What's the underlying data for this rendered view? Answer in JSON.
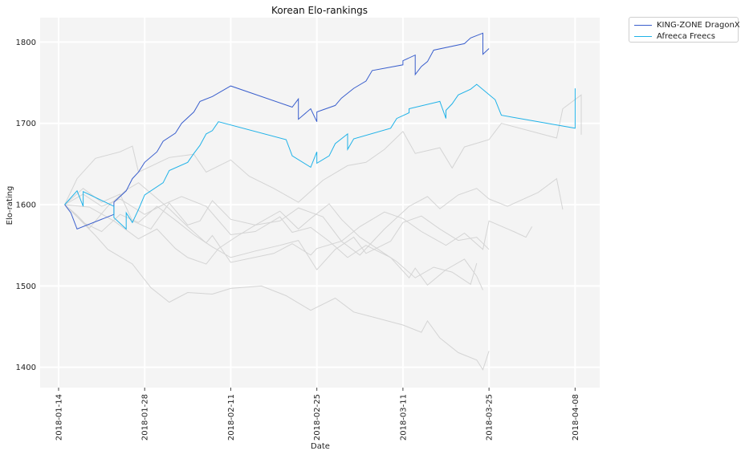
{
  "chart_data": {
    "type": "line",
    "title": "Korean Elo-rankings",
    "xlabel": "Date",
    "ylabel": "Elo-rating",
    "x_ticks": [
      "2018-01-14",
      "2018-01-28",
      "2018-02-11",
      "2018-02-25",
      "2018-03-11",
      "2018-03-25",
      "2018-04-08"
    ],
    "y_ticks": [
      1400,
      1500,
      1600,
      1700,
      1800
    ],
    "xlim": [
      "2018-01-11",
      "2018-04-12"
    ],
    "ylim": [
      1375,
      1830
    ],
    "grid": true,
    "legend_position": "outside-top-right",
    "colors": {
      "background": "#f4f4f4",
      "grid": "#ffffff",
      "other_teams": "#d4d4d4"
    },
    "series": [
      {
        "name": "KING-ZONE DragonX",
        "color": "#3a5fcd",
        "points": [
          [
            "2018-01-15",
            1600
          ],
          [
            "2018-01-16",
            1590
          ],
          [
            "2018-01-17",
            1570
          ],
          [
            "2018-01-23",
            1588
          ],
          [
            "2018-01-23",
            1603
          ],
          [
            "2018-01-25",
            1617
          ],
          [
            "2018-01-26",
            1632
          ],
          [
            "2018-01-27",
            1640
          ],
          [
            "2018-01-28",
            1652
          ],
          [
            "2018-01-30",
            1665
          ],
          [
            "2018-01-31",
            1678
          ],
          [
            "2018-02-02",
            1688
          ],
          [
            "2018-02-03",
            1700
          ],
          [
            "2018-02-05",
            1714
          ],
          [
            "2018-02-06",
            1727
          ],
          [
            "2018-02-08",
            1733
          ],
          [
            "2018-02-11",
            1746
          ],
          [
            "2018-02-21",
            1720
          ],
          [
            "2018-02-22",
            1730
          ],
          [
            "2018-02-22",
            1705
          ],
          [
            "2018-02-24",
            1718
          ],
          [
            "2018-02-25",
            1702
          ],
          [
            "2018-02-25",
            1714
          ],
          [
            "2018-02-28",
            1722
          ],
          [
            "2018-03-01",
            1731
          ],
          [
            "2018-03-03",
            1743
          ],
          [
            "2018-03-05",
            1752
          ],
          [
            "2018-03-06",
            1765
          ],
          [
            "2018-03-11",
            1772
          ],
          [
            "2018-03-11",
            1777
          ],
          [
            "2018-03-13",
            1784
          ],
          [
            "2018-03-13",
            1760
          ],
          [
            "2018-03-14",
            1770
          ],
          [
            "2018-03-15",
            1776
          ],
          [
            "2018-03-16",
            1790
          ],
          [
            "2018-03-21",
            1798
          ],
          [
            "2018-03-22",
            1805
          ],
          [
            "2018-03-24",
            1811
          ],
          [
            "2018-03-24",
            1785
          ],
          [
            "2018-03-25",
            1792
          ]
        ]
      },
      {
        "name": "Afreeca Freecs",
        "color": "#1fb2e8",
        "points": [
          [
            "2018-01-15",
            1600
          ],
          [
            "2018-01-17",
            1617
          ],
          [
            "2018-01-18",
            1598
          ],
          [
            "2018-01-18",
            1616
          ],
          [
            "2018-01-23",
            1598
          ],
          [
            "2018-01-23",
            1584
          ],
          [
            "2018-01-25",
            1570
          ],
          [
            "2018-01-25",
            1590
          ],
          [
            "2018-01-26",
            1578
          ],
          [
            "2018-01-27",
            1594
          ],
          [
            "2018-01-28",
            1612
          ],
          [
            "2018-01-31",
            1627
          ],
          [
            "2018-02-01",
            1642
          ],
          [
            "2018-02-04",
            1652
          ],
          [
            "2018-02-05",
            1663
          ],
          [
            "2018-02-06",
            1673
          ],
          [
            "2018-02-07",
            1687
          ],
          [
            "2018-02-08",
            1691
          ],
          [
            "2018-02-09",
            1702
          ],
          [
            "2018-02-20",
            1680
          ],
          [
            "2018-02-21",
            1660
          ],
          [
            "2018-02-24",
            1646
          ],
          [
            "2018-02-25",
            1665
          ],
          [
            "2018-02-25",
            1651
          ],
          [
            "2018-02-27",
            1660
          ],
          [
            "2018-02-28",
            1675
          ],
          [
            "2018-03-02",
            1687
          ],
          [
            "2018-03-02",
            1668
          ],
          [
            "2018-03-03",
            1681
          ],
          [
            "2018-03-09",
            1694
          ],
          [
            "2018-03-10",
            1706
          ],
          [
            "2018-03-12",
            1713
          ],
          [
            "2018-03-12",
            1718
          ],
          [
            "2018-03-17",
            1727
          ],
          [
            "2018-03-18",
            1706
          ],
          [
            "2018-03-18",
            1716
          ],
          [
            "2018-03-19",
            1724
          ],
          [
            "2018-03-20",
            1735
          ],
          [
            "2018-03-22",
            1742
          ],
          [
            "2018-03-23",
            1748
          ],
          [
            "2018-03-26",
            1729
          ],
          [
            "2018-03-27",
            1710
          ],
          [
            "2018-04-08",
            1694
          ],
          [
            "2018-04-08",
            1743
          ]
        ]
      }
    ],
    "background_series": [
      {
        "points": [
          [
            "2018-01-15",
            1600
          ],
          [
            "2018-01-17",
            1632
          ],
          [
            "2018-01-20",
            1657
          ],
          [
            "2018-01-24",
            1665
          ],
          [
            "2018-01-26",
            1672
          ],
          [
            "2018-01-27",
            1640
          ],
          [
            "2018-02-01",
            1658
          ],
          [
            "2018-02-05",
            1662
          ],
          [
            "2018-02-07",
            1640
          ],
          [
            "2018-02-11",
            1655
          ],
          [
            "2018-02-14",
            1635
          ],
          [
            "2018-02-18",
            1620
          ],
          [
            "2018-02-22",
            1603
          ],
          [
            "2018-02-26",
            1630
          ],
          [
            "2018-03-02",
            1648
          ],
          [
            "2018-03-05",
            1652
          ],
          [
            "2018-03-08",
            1668
          ],
          [
            "2018-03-11",
            1690
          ],
          [
            "2018-03-13",
            1663
          ],
          [
            "2018-03-17",
            1670
          ],
          [
            "2018-03-19",
            1645
          ],
          [
            "2018-03-21",
            1671
          ],
          [
            "2018-03-25",
            1680
          ],
          [
            "2018-03-27",
            1700
          ],
          [
            "2018-04-05",
            1682
          ],
          [
            "2018-04-06",
            1718
          ],
          [
            "2018-04-09",
            1735
          ],
          [
            "2018-04-09",
            1686
          ]
        ]
      },
      {
        "points": [
          [
            "2018-01-15",
            1600
          ],
          [
            "2018-01-18",
            1620
          ],
          [
            "2018-01-21",
            1603
          ],
          [
            "2018-01-24",
            1613
          ],
          [
            "2018-01-26",
            1580
          ],
          [
            "2018-01-29",
            1570
          ],
          [
            "2018-02-01",
            1602
          ],
          [
            "2018-02-04",
            1575
          ],
          [
            "2018-02-06",
            1580
          ],
          [
            "2018-02-08",
            1605
          ],
          [
            "2018-02-11",
            1582
          ],
          [
            "2018-02-15",
            1575
          ],
          [
            "2018-02-19",
            1580
          ],
          [
            "2018-02-22",
            1596
          ],
          [
            "2018-02-26",
            1585
          ],
          [
            "2018-03-01",
            1555
          ],
          [
            "2018-03-04",
            1538
          ],
          [
            "2018-03-08",
            1570
          ],
          [
            "2018-03-12",
            1598
          ],
          [
            "2018-03-15",
            1610
          ],
          [
            "2018-03-17",
            1595
          ],
          [
            "2018-03-20",
            1612
          ],
          [
            "2018-03-23",
            1620
          ],
          [
            "2018-03-25",
            1607
          ],
          [
            "2018-03-28",
            1598
          ],
          [
            "2018-04-02",
            1615
          ],
          [
            "2018-04-05",
            1632
          ],
          [
            "2018-04-06",
            1594
          ]
        ]
      },
      {
        "points": [
          [
            "2018-01-15",
            1600
          ],
          [
            "2018-01-17",
            1587
          ],
          [
            "2018-01-19",
            1571
          ],
          [
            "2018-01-22",
            1598
          ],
          [
            "2018-01-25",
            1618
          ],
          [
            "2018-01-27",
            1627
          ],
          [
            "2018-01-29",
            1614
          ],
          [
            "2018-02-01",
            1595
          ],
          [
            "2018-02-04",
            1573
          ],
          [
            "2018-02-07",
            1553
          ],
          [
            "2018-02-08",
            1562
          ],
          [
            "2018-02-11",
            1529
          ],
          [
            "2018-02-18",
            1540
          ],
          [
            "2018-02-21",
            1552
          ],
          [
            "2018-02-24",
            1538
          ],
          [
            "2018-02-25",
            1546
          ],
          [
            "2018-03-01",
            1555
          ],
          [
            "2018-03-04",
            1573
          ],
          [
            "2018-03-08",
            1591
          ],
          [
            "2018-03-11",
            1583
          ],
          [
            "2018-03-14",
            1567
          ],
          [
            "2018-03-18",
            1550
          ],
          [
            "2018-03-21",
            1565
          ],
          [
            "2018-03-24",
            1545
          ],
          [
            "2018-03-25",
            1580
          ],
          [
            "2018-03-29",
            1567
          ],
          [
            "2018-03-31",
            1560
          ],
          [
            "2018-04-01",
            1573
          ]
        ]
      },
      {
        "points": [
          [
            "2018-01-15",
            1600
          ],
          [
            "2018-01-18",
            1578
          ],
          [
            "2018-01-21",
            1567
          ],
          [
            "2018-01-24",
            1588
          ],
          [
            "2018-01-27",
            1578
          ],
          [
            "2018-01-30",
            1598
          ],
          [
            "2018-02-02",
            1581
          ],
          [
            "2018-02-05",
            1563
          ],
          [
            "2018-02-08",
            1548
          ],
          [
            "2018-02-11",
            1535
          ],
          [
            "2018-02-15",
            1543
          ],
          [
            "2018-02-19",
            1550
          ],
          [
            "2018-02-22",
            1556
          ],
          [
            "2018-02-25",
            1520
          ],
          [
            "2018-02-28",
            1545
          ],
          [
            "2018-03-03",
            1560
          ],
          [
            "2018-03-05",
            1540
          ],
          [
            "2018-03-09",
            1555
          ],
          [
            "2018-03-11",
            1578
          ],
          [
            "2018-03-14",
            1586
          ],
          [
            "2018-03-17",
            1570
          ],
          [
            "2018-03-20",
            1556
          ],
          [
            "2018-03-23",
            1560
          ],
          [
            "2018-03-25",
            1545
          ]
        ]
      },
      {
        "points": [
          [
            "2018-01-15",
            1600
          ],
          [
            "2018-01-17",
            1585
          ],
          [
            "2018-01-20",
            1562
          ],
          [
            "2018-01-22",
            1545
          ],
          [
            "2018-01-26",
            1527
          ],
          [
            "2018-01-29",
            1498
          ],
          [
            "2018-02-01",
            1480
          ],
          [
            "2018-02-04",
            1492
          ],
          [
            "2018-02-08",
            1490
          ],
          [
            "2018-02-11",
            1497
          ],
          [
            "2018-02-16",
            1500
          ],
          [
            "2018-02-20",
            1488
          ],
          [
            "2018-02-24",
            1470
          ],
          [
            "2018-02-28",
            1485
          ],
          [
            "2018-03-03",
            1468
          ],
          [
            "2018-03-07",
            1460
          ],
          [
            "2018-03-11",
            1452
          ],
          [
            "2018-03-14",
            1443
          ],
          [
            "2018-03-15",
            1457
          ],
          [
            "2018-03-17",
            1436
          ],
          [
            "2018-03-20",
            1418
          ],
          [
            "2018-03-23",
            1409
          ],
          [
            "2018-03-24",
            1397
          ],
          [
            "2018-03-25",
            1420
          ]
        ]
      },
      {
        "points": [
          [
            "2018-01-15",
            1600
          ],
          [
            "2018-01-19",
            1597
          ],
          [
            "2018-01-23",
            1580
          ],
          [
            "2018-01-27",
            1558
          ],
          [
            "2018-01-30",
            1570
          ],
          [
            "2018-02-02",
            1546
          ],
          [
            "2018-02-04",
            1535
          ],
          [
            "2018-02-07",
            1527
          ],
          [
            "2018-02-09",
            1546
          ],
          [
            "2018-02-12",
            1561
          ],
          [
            "2018-02-15",
            1575
          ],
          [
            "2018-02-19",
            1592
          ],
          [
            "2018-02-22",
            1570
          ],
          [
            "2018-02-24",
            1583
          ],
          [
            "2018-02-27",
            1601
          ],
          [
            "2018-03-01",
            1582
          ],
          [
            "2018-03-04",
            1560
          ],
          [
            "2018-03-07",
            1545
          ],
          [
            "2018-03-10",
            1530
          ],
          [
            "2018-03-13",
            1510
          ],
          [
            "2018-03-16",
            1523
          ],
          [
            "2018-03-19",
            1517
          ],
          [
            "2018-03-22",
            1502
          ],
          [
            "2018-03-23",
            1528
          ]
        ]
      },
      {
        "points": [
          [
            "2018-01-15",
            1600
          ],
          [
            "2018-01-18",
            1613
          ],
          [
            "2018-01-21",
            1598
          ],
          [
            "2018-01-24",
            1607
          ],
          [
            "2018-01-28",
            1588
          ],
          [
            "2018-01-31",
            1600
          ],
          [
            "2018-02-03",
            1610
          ],
          [
            "2018-02-07",
            1598
          ],
          [
            "2018-02-11",
            1563
          ],
          [
            "2018-02-15",
            1567
          ],
          [
            "2018-02-19",
            1585
          ],
          [
            "2018-02-21",
            1566
          ],
          [
            "2018-02-24",
            1572
          ],
          [
            "2018-02-27",
            1555
          ],
          [
            "2018-03-02",
            1535
          ],
          [
            "2018-03-05",
            1550
          ],
          [
            "2018-03-09",
            1535
          ],
          [
            "2018-03-12",
            1510
          ],
          [
            "2018-03-13",
            1522
          ],
          [
            "2018-03-15",
            1501
          ],
          [
            "2018-03-18",
            1520
          ],
          [
            "2018-03-21",
            1533
          ],
          [
            "2018-03-23",
            1512
          ],
          [
            "2018-03-24",
            1495
          ]
        ]
      }
    ]
  },
  "legend": {
    "items": [
      {
        "label": "KING-ZONE DragonX",
        "color": "#3a5fcd"
      },
      {
        "label": "Afreeca Freecs",
        "color": "#1fb2e8"
      }
    ]
  }
}
